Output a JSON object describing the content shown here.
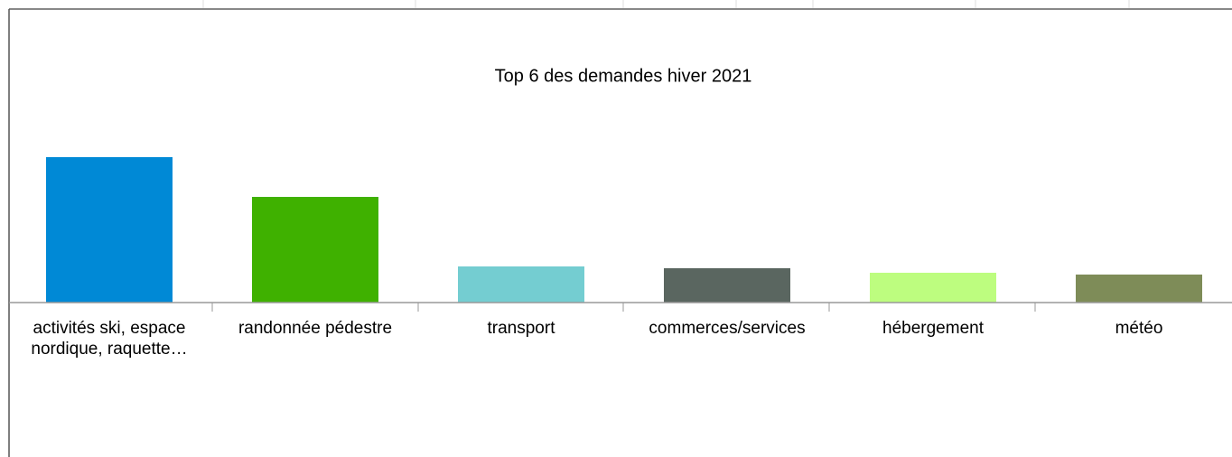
{
  "chart_data": {
    "type": "bar",
    "title": "Top 6 des demandes hiver 2021",
    "categories": [
      "activités ski, espace nordique, raquette…",
      "randonnée pédestre",
      "transport",
      "commerces/services",
      "hébergement",
      "météo"
    ],
    "values": [
      161,
      117,
      40,
      38,
      33,
      31
    ],
    "colors": [
      "#0089d6",
      "#3fb100",
      "#74cdd1",
      "#5a6660",
      "#bdfd7f",
      "#7e8c58"
    ],
    "ylim": [
      0,
      200
    ]
  }
}
